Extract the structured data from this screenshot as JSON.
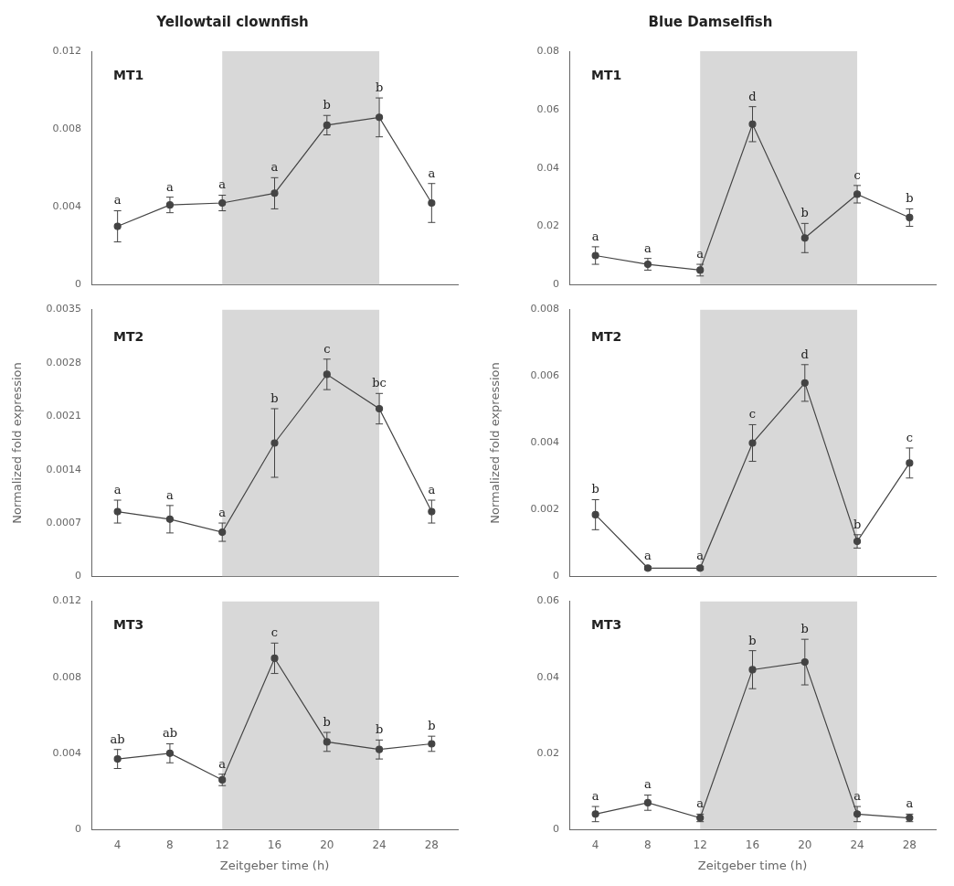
{
  "chart_data": [
    {
      "type": "line",
      "title": "Yellowtail clownfish",
      "annotations": [
        {
          "text": "MT1"
        }
      ],
      "x": [
        4,
        8,
        12,
        16,
        20,
        24,
        28
      ],
      "xlim": [
        2,
        30
      ],
      "xticks": [
        4,
        8,
        12,
        16,
        20,
        24,
        28
      ],
      "ylim": [
        0,
        0.012
      ],
      "yticks": [
        0,
        0.004,
        0.008,
        0.012
      ],
      "grid": false,
      "tick_labels": "y",
      "shade": {
        "x": [
          12,
          24
        ],
        "color": "#d8d8d8"
      },
      "series": [
        {
          "color": "#444444",
          "marker": "circle",
          "values": [
            0.003,
            0.0041,
            0.0042,
            0.0047,
            0.0082,
            0.0086,
            0.0042
          ],
          "yerr": [
            0.0008,
            0.0004,
            0.0004,
            0.0008,
            0.0005,
            0.001,
            0.001
          ],
          "letters": [
            "a",
            "a",
            "a",
            "a",
            "b",
            "b",
            "a"
          ]
        }
      ]
    },
    {
      "type": "line",
      "title": "Blue Damselfish",
      "annotations": [
        {
          "text": "MT1"
        }
      ],
      "x": [
        4,
        8,
        12,
        16,
        20,
        24,
        28
      ],
      "xlim": [
        2,
        30
      ],
      "xticks": [
        4,
        8,
        12,
        16,
        20,
        24,
        28
      ],
      "ylim": [
        0,
        0.08
      ],
      "yticks": [
        0,
        0.02,
        0.04,
        0.06,
        0.08
      ],
      "grid": false,
      "tick_labels": "y",
      "shade": {
        "x": [
          12,
          24
        ],
        "color": "#d8d8d8"
      },
      "series": [
        {
          "color": "#444444",
          "marker": "circle",
          "values": [
            0.01,
            0.007,
            0.005,
            0.055,
            0.016,
            0.031,
            0.023
          ],
          "yerr": [
            0.003,
            0.002,
            0.002,
            0.006,
            0.005,
            0.003,
            0.003
          ],
          "letters": [
            "a",
            "a",
            "a",
            "d",
            "b",
            "c",
            "b"
          ]
        }
      ]
    },
    {
      "type": "line",
      "ylabel": "Normalized fold expression",
      "annotations": [
        {
          "text": "MT2"
        }
      ],
      "x": [
        4,
        8,
        12,
        16,
        20,
        24,
        28
      ],
      "xlim": [
        2,
        30
      ],
      "xticks": [
        4,
        8,
        12,
        16,
        20,
        24,
        28
      ],
      "ylim": [
        0,
        0.0035
      ],
      "yticks": [
        0,
        0.0007,
        0.0014,
        0.0021,
        0.0028,
        0.0035
      ],
      "grid": false,
      "tick_labels": "y",
      "shade": {
        "x": [
          12,
          24
        ],
        "color": "#d8d8d8"
      },
      "series": [
        {
          "color": "#444444",
          "marker": "circle",
          "values": [
            0.00085,
            0.00075,
            0.00058,
            0.00175,
            0.00265,
            0.0022,
            0.00085
          ],
          "yerr": [
            0.00015,
            0.00018,
            0.00012,
            0.00045,
            0.0002,
            0.0002,
            0.00015
          ],
          "letters": [
            "a",
            "a",
            "a",
            "b",
            "c",
            "bc",
            "a"
          ]
        }
      ]
    },
    {
      "type": "line",
      "ylabel": "Normalized fold expression",
      "annotations": [
        {
          "text": "MT2"
        }
      ],
      "x": [
        4,
        8,
        12,
        16,
        20,
        24,
        28
      ],
      "xlim": [
        2,
        30
      ],
      "xticks": [
        4,
        8,
        12,
        16,
        20,
        24,
        28
      ],
      "ylim": [
        0,
        0.008
      ],
      "yticks": [
        0,
        0.002,
        0.004,
        0.006,
        0.008
      ],
      "grid": false,
      "tick_labels": "y",
      "shade": {
        "x": [
          12,
          24
        ],
        "color": "#d8d8d8"
      },
      "series": [
        {
          "color": "#444444",
          "marker": "circle",
          "values": [
            0.00185,
            0.00025,
            0.00025,
            0.004,
            0.0058,
            0.00105,
            0.0034
          ],
          "yerr": [
            0.00045,
            5e-05,
            5e-05,
            0.00055,
            0.00055,
            0.0002,
            0.00045
          ],
          "letters": [
            "b",
            "a",
            "a",
            "c",
            "d",
            "b",
            "c"
          ]
        }
      ]
    },
    {
      "type": "line",
      "xlabel": "Zeitgeber time (h)",
      "annotations": [
        {
          "text": "MT3"
        }
      ],
      "x": [
        4,
        8,
        12,
        16,
        20,
        24,
        28
      ],
      "xlim": [
        2,
        30
      ],
      "xticks": [
        4,
        8,
        12,
        16,
        20,
        24,
        28
      ],
      "ylim": [
        0,
        0.012
      ],
      "yticks": [
        0,
        0.004,
        0.008,
        0.012
      ],
      "grid": false,
      "shade": {
        "x": [
          12,
          24
        ],
        "color": "#d8d8d8"
      },
      "series": [
        {
          "color": "#444444",
          "marker": "circle",
          "values": [
            0.0037,
            0.004,
            0.0026,
            0.009,
            0.0046,
            0.0042,
            0.0045
          ],
          "yerr": [
            0.0005,
            0.0005,
            0.0003,
            0.0008,
            0.0005,
            0.0005,
            0.0004
          ],
          "letters": [
            "ab",
            "ab",
            "a",
            "c",
            "b",
            "b",
            "b"
          ]
        }
      ]
    },
    {
      "type": "line",
      "xlabel": "Zeitgeber time (h)",
      "annotations": [
        {
          "text": "MT3"
        }
      ],
      "x": [
        4,
        8,
        12,
        16,
        20,
        24,
        28
      ],
      "xlim": [
        2,
        30
      ],
      "xticks": [
        4,
        8,
        12,
        16,
        20,
        24,
        28
      ],
      "ylim": [
        0,
        0.06
      ],
      "yticks": [
        0,
        0.02,
        0.04,
        0.06
      ],
      "grid": false,
      "shade": {
        "x": [
          12,
          24
        ],
        "color": "#d8d8d8"
      },
      "series": [
        {
          "color": "#444444",
          "marker": "circle",
          "values": [
            0.004,
            0.007,
            0.003,
            0.042,
            0.044,
            0.004,
            0.003
          ],
          "yerr": [
            0.002,
            0.002,
            0.001,
            0.005,
            0.006,
            0.002,
            0.001
          ],
          "letters": [
            "a",
            "a",
            "a",
            "b",
            "b",
            "a",
            "a"
          ]
        }
      ]
    }
  ]
}
